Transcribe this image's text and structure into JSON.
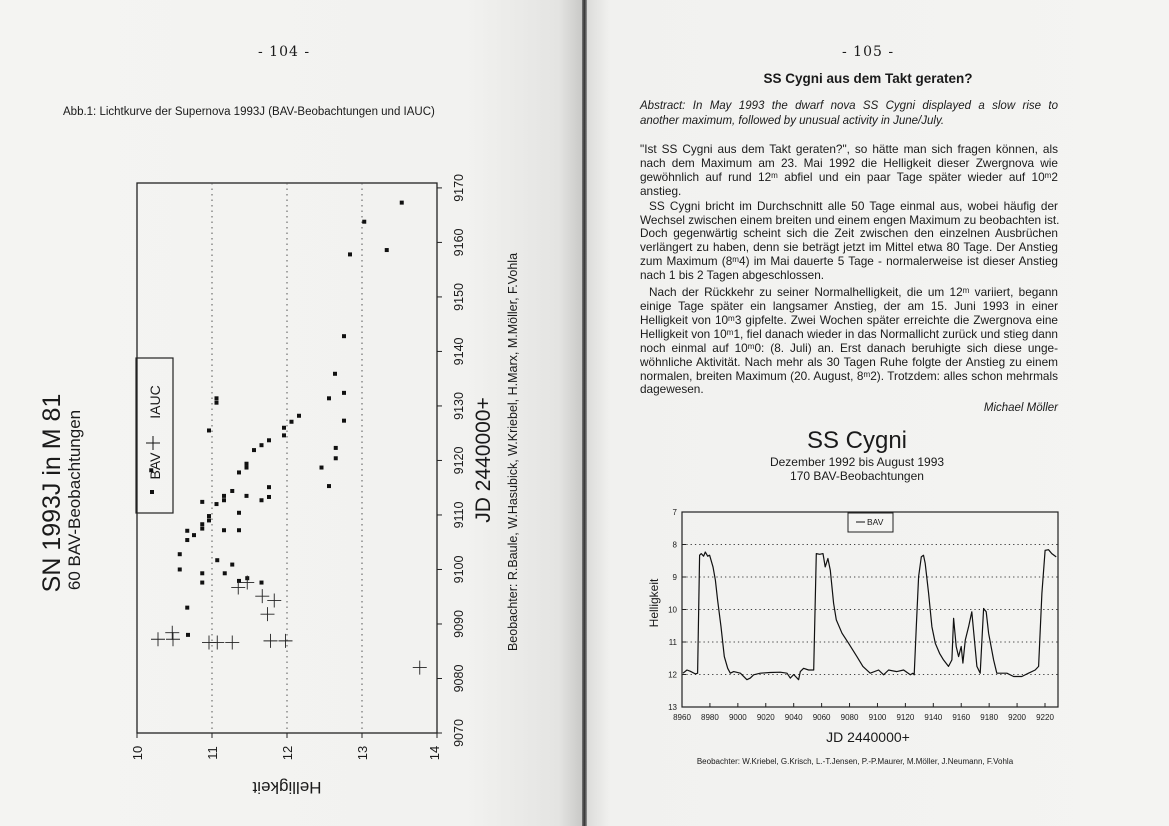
{
  "left_page": {
    "page_number": "- 104 -",
    "caption": "Abb.1: Lichtkurve der Supernova 1993J (BAV-Beobachtungen und IAUC)"
  },
  "right_page": {
    "page_number": "- 105 -",
    "title": "SS Cygni aus dem Takt geraten?",
    "abstract_lines": [
      "Abstract: In May 1993 the dwarf nova SS Cygni displayed a slow rise to",
      "another maximum, followed by unusual activity in June/July."
    ],
    "paragraphs": [
      [
        "\"Ist SS Cygni aus dem Takt geraten?\", so hätte man sich fragen können, als",
        "nach dem Maximum am 23. Mai 1992 die Helligkeit dieser Zwergnova wie",
        "gewöhnlich auf rund 12ᵐ abfiel und ein paar Tage später wieder auf 10ᵐ2",
        "anstieg."
      ],
      [
        "SS Cygni bricht im Durchschnitt alle 50 Tage einmal aus, wobei häufig der",
        "Wechsel zwischen einem breiten und einem engen Maximum zu beobachten ist.",
        "Doch gegenwärtig scheint sich die Zeit zwischen den einzelnen Ausbrüchen",
        "verlängert zu haben, denn sie beträgt jetzt im Mittel etwa 80 Tage. Der Anstieg",
        "zum Maximum  (8ᵐ4) im Mai dauerte 5 Tage - normalerweise ist dieser Anstieg",
        "nach 1 bis 2 Tagen abgeschlossen."
      ],
      [
        "Nach der Rückkehr zu seiner Normalhelligkeit, die um 12ᵐ variiert, begann",
        "einige Tage später ein langsamer Anstieg, der am 15. Juni 1993 in einer",
        "Helligkeit von 10ᵐ3 gipfelte. Zwei Wochen später erreichte die Zwergnova eine",
        "Helligkeit von 10ᵐ1, fiel danach wieder in das Normallicht zurück und stieg dann",
        "noch einmal auf 10ᵐ0: (8. Juli) an. Erst danach beruhigte sich diese unge-",
        "wöhnliche Aktivität. Nach mehr als 30 Tagen Ruhe folgte der Anstieg zu einem",
        "normalen, breiten Maximum (20. August, 8ᵐ2). Trotzdem: alles schon mehrmals",
        "dagewesen."
      ]
    ],
    "author": "Michael Möller"
  },
  "chart_data": [
    {
      "type": "scatter",
      "title": "SN 1993J in M 81",
      "subtitle": "60 BAV-Beobachtungen",
      "xlabel": "JD 2440000+",
      "ylabel": "Helligkeit",
      "xlim": [
        9070,
        9170
      ],
      "ylim": [
        14,
        10
      ],
      "y_inverted": true,
      "orientation": "rotated 90° counter-clockwise",
      "x_ticks": [
        "9070",
        "9080",
        "9090",
        "9100",
        "9110",
        "9120",
        "9130",
        "9140",
        "9150",
        "9160",
        "9170"
      ],
      "y_ticks": [
        "10",
        "11",
        "12",
        "13",
        "14"
      ],
      "grid": "dotted at 11, 12, 13",
      "legend": {
        "position": "top-left",
        "entries": [
          "BAV",
          "IAUC"
        ]
      },
      "footer": "Beobachter: R.Baule, W.Hasubick, W.Kriebel, H.Marx, M.Möller, F.Vohla",
      "series": [
        {
          "name": "BAV",
          "marker": "square",
          "points": [
            [
              9167.3,
              13.53
            ],
            [
              9163.8,
              13.03
            ],
            [
              9158.6,
              13.33
            ],
            [
              9157.8,
              12.84
            ],
            [
              9142.8,
              12.76
            ],
            [
              9135.9,
              12.64
            ],
            [
              9132.4,
              12.76
            ],
            [
              9131.4,
              11.06
            ],
            [
              9130.6,
              11.06
            ],
            [
              9131.4,
              12.56
            ],
            [
              9128.2,
              12.16
            ],
            [
              9127.1,
              12.06
            ],
            [
              9127.3,
              12.76
            ],
            [
              9126.0,
              11.96
            ],
            [
              9124.6,
              11.96
            ],
            [
              9125.5,
              10.96
            ],
            [
              9123.7,
              11.76
            ],
            [
              9122.8,
              11.66
            ],
            [
              9122.3,
              12.65
            ],
            [
              9121.9,
              11.56
            ],
            [
              9120.4,
              12.65
            ],
            [
              9119.4,
              11.46
            ],
            [
              9118.7,
              11.46
            ],
            [
              9118.7,
              12.46
            ],
            [
              9117.8,
              11.36
            ],
            [
              9118.2,
              10.19
            ],
            [
              9115.3,
              12.56
            ],
            [
              9115.1,
              11.76
            ],
            [
              9114.4,
              11.27
            ],
            [
              9113.5,
              11.46
            ],
            [
              9113.5,
              11.16
            ],
            [
              9113.3,
              11.76
            ],
            [
              9112.7,
              11.66
            ],
            [
              9112.7,
              11.16
            ],
            [
              9112.0,
              11.06
            ],
            [
              9112.4,
              10.87
            ],
            [
              9110.4,
              11.36
            ],
            [
              9109.8,
              10.96
            ],
            [
              9109.0,
              10.96
            ],
            [
              9108.3,
              10.87
            ],
            [
              9107.5,
              10.87
            ],
            [
              9107.2,
              11.16
            ],
            [
              9107.2,
              11.36
            ],
            [
              9107.1,
              10.67
            ],
            [
              9106.3,
              10.76
            ],
            [
              9105.4,
              10.67
            ],
            [
              9102.8,
              10.57
            ],
            [
              9101.7,
              11.07
            ],
            [
              9100.9,
              11.27
            ],
            [
              9100.0,
              10.57
            ],
            [
              9099.3,
              10.87
            ],
            [
              9099.3,
              11.17
            ],
            [
              9097.6,
              10.87
            ],
            [
              9097.9,
              11.36
            ],
            [
              9098.4,
              11.47
            ],
            [
              9097.6,
              11.66
            ],
            [
              9093.0,
              10.67
            ],
            [
              9088.0,
              10.68
            ]
          ]
        },
        {
          "name": "IAUC",
          "marker": "cross",
          "points": [
            [
              9087.2,
              10.28
            ],
            [
              9088.4,
              10.47
            ],
            [
              9087.2,
              10.48
            ],
            [
              9086.6,
              10.96
            ],
            [
              9086.6,
              11.07
            ],
            [
              9086.6,
              11.27
            ],
            [
              9096.7,
              11.35
            ],
            [
              9097.6,
              11.47
            ],
            [
              9095.1,
              11.67
            ],
            [
              9094.3,
              11.83
            ],
            [
              9091.8,
              11.74
            ],
            [
              9086.9,
              11.78
            ],
            [
              9086.9,
              11.98
            ],
            [
              9082.0,
              13.77
            ]
          ]
        }
      ]
    },
    {
      "type": "line",
      "title": "SS Cygni",
      "subtitle_lines": [
        "Dezember 1992 bis August 1993",
        "170 BAV-Beobachtungen"
      ],
      "xlabel": "JD 2440000+",
      "ylabel": "Helligkeit",
      "xlim": [
        8960,
        9229
      ],
      "ylim": [
        13,
        7
      ],
      "y_inverted": true,
      "x_ticks": [
        "8960",
        "8980",
        "9000",
        "9020",
        "9040",
        "9060",
        "9080",
        "9100",
        "9120",
        "9140",
        "9160",
        "9180",
        "9200",
        "9220"
      ],
      "y_ticks": [
        "7",
        "8",
        "9",
        "10",
        "11",
        "12",
        "13"
      ],
      "grid": "dotted horizontal at 8, 9, 10, 11, 12",
      "legend": {
        "position": "top-center",
        "entries": [
          "BAV"
        ]
      },
      "footer": "Beobachter: W.Kriebel, G.Krisch, L.-T.Jensen, P.-P.Maurer, M.Möller, J.Neumann, F.Vohla",
      "series": [
        {
          "name": "BAV",
          "points": [
            [
              8960.7,
              11.96
            ],
            [
              8963.6,
              11.86
            ],
            [
              8966,
              11.9
            ],
            [
              8969.5,
              11.98
            ],
            [
              8971.2,
              11.96
            ],
            [
              8972.6,
              8.33
            ],
            [
              8973.8,
              8.28
            ],
            [
              8975.5,
              8.36
            ],
            [
              8976.7,
              8.23
            ],
            [
              8978.4,
              8.36
            ],
            [
              8979.8,
              8.33
            ],
            [
              8982.2,
              8.69
            ],
            [
              8983.9,
              9.1
            ],
            [
              8985.5,
              9.71
            ],
            [
              8987.9,
              10.53
            ],
            [
              8990.3,
              11.45
            ],
            [
              8992.7,
              11.81
            ],
            [
              8994.6,
              11.96
            ],
            [
              8997,
              11.91
            ],
            [
              9001.8,
              11.96
            ],
            [
              9006.5,
              12.16
            ],
            [
              9008.9,
              12.11
            ],
            [
              9011.3,
              12.01
            ],
            [
              9016.1,
              11.96
            ],
            [
              9023.2,
              11.94
            ],
            [
              9030.4,
              11.93
            ],
            [
              9035.2,
              11.96
            ],
            [
              9037.6,
              12.11
            ],
            [
              9040,
              12.0
            ],
            [
              9043.5,
              12.16
            ],
            [
              9044.7,
              11.91
            ],
            [
              9047.1,
              11.81
            ],
            [
              9050.7,
              11.86
            ],
            [
              9054.3,
              11.86
            ],
            [
              9056.2,
              8.28
            ],
            [
              9058.6,
              8.3
            ],
            [
              9061,
              8.28
            ],
            [
              9062.6,
              8.69
            ],
            [
              9064.5,
              8.43
            ],
            [
              9066.2,
              8.79
            ],
            [
              9068.6,
              9.81
            ],
            [
              9070.5,
              10.32
            ],
            [
              9074.6,
              10.73
            ],
            [
              9079.3,
              11.04
            ],
            [
              9085.3,
              11.45
            ],
            [
              9089.6,
              11.75
            ],
            [
              9094.8,
              11.96
            ],
            [
              9100.8,
              11.86
            ],
            [
              9104.4,
              12.01
            ],
            [
              9108,
              11.86
            ],
            [
              9113.9,
              11.91
            ],
            [
              9118.7,
              11.86
            ],
            [
              9123.5,
              12.01
            ],
            [
              9125.4,
              11.96
            ],
            [
              9126.3,
              12.01
            ],
            [
              9127.8,
              10.53
            ],
            [
              9129.5,
              8.99
            ],
            [
              9131.4,
              8.38
            ],
            [
              9133,
              8.33
            ],
            [
              9134.2,
              8.58
            ],
            [
              9136.6,
              9.5
            ],
            [
              9139,
              10.53
            ],
            [
              9141.4,
              11.04
            ],
            [
              9144.5,
              11.35
            ],
            [
              9147.3,
              11.55
            ],
            [
              9150.9,
              11.75
            ],
            [
              9153.3,
              11.55
            ],
            [
              9154.5,
              10.27
            ],
            [
              9156.4,
              11.14
            ],
            [
              9158.1,
              11.45
            ],
            [
              9160,
              11.14
            ],
            [
              9161.2,
              11.65
            ],
            [
              9162.9,
              10.94
            ],
            [
              9165.3,
              10.53
            ],
            [
              9167.6,
              10.07
            ],
            [
              9168.8,
              10.63
            ],
            [
              9171.2,
              11.75
            ],
            [
              9173.6,
              11.96
            ],
            [
              9176,
              9.97
            ],
            [
              9177.9,
              10.07
            ],
            [
              9179.6,
              10.73
            ],
            [
              9183.2,
              11.55
            ],
            [
              9185.5,
              11.96
            ],
            [
              9192.7,
              11.96
            ],
            [
              9197.5,
              12.06
            ],
            [
              9203.4,
              12.06
            ],
            [
              9208.2,
              11.96
            ],
            [
              9213,
              11.86
            ],
            [
              9215.4,
              11.75
            ],
            [
              9217.8,
              9.5
            ],
            [
              9220.1,
              8.18
            ],
            [
              9222.5,
              8.16
            ],
            [
              9224.9,
              8.28
            ],
            [
              9228,
              8.38
            ]
          ]
        }
      ]
    }
  ]
}
